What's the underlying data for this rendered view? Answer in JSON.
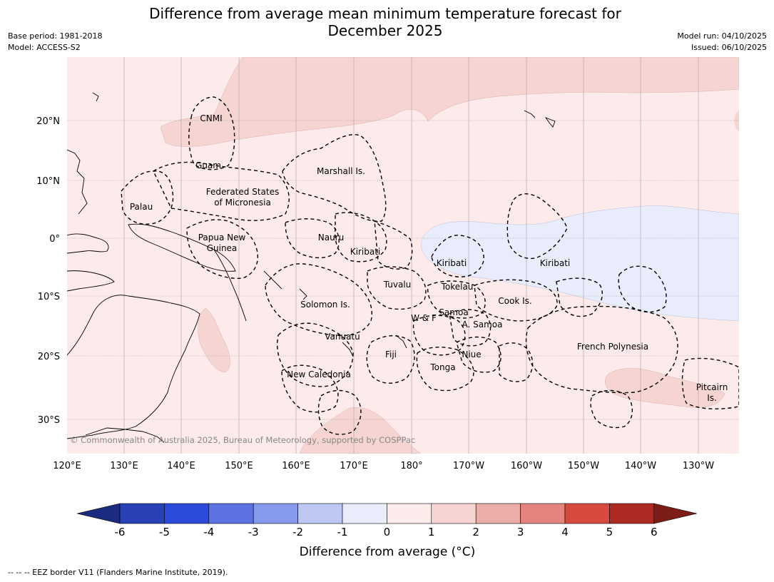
{
  "title_line1": "Difference from average mean minimum temperature forecast for",
  "title_line2": "December 2025",
  "meta_left": {
    "base_period": "Base period: 1981-2018",
    "model": "Model: ACCESS-S2"
  },
  "meta_right": {
    "model_run": "Model run: 04/10/2025",
    "issued": "Issued: 06/10/2025"
  },
  "lon_ticks": [
    "120°E",
    "130°E",
    "140°E",
    "150°E",
    "160°E",
    "170°E",
    "180°",
    "170°W",
    "160°W",
    "150°W",
    "140°W",
    "130°W"
  ],
  "lat_ticks": [
    "20°N",
    "10°N",
    "0°",
    "10°S",
    "20°S",
    "30°S"
  ],
  "region_labels": {
    "cnmi": "CNMI",
    "guam": "Guam",
    "marshall": "Marshall Is.",
    "fsm_1": "Federated States",
    "fsm_2": "of Micronesia",
    "palau": "Palau",
    "png_1": "Papua New",
    "png_2": "Guinea",
    "nauru": "Nauru",
    "kiribati_w": "Kiribati",
    "kiribati_c": "Kiribati",
    "kiribati_e": "Kiribati",
    "tuvalu": "Tuvalu",
    "tokelau": "Tokelau",
    "cook": "Cook Is.",
    "solomon": "Solomon Is.",
    "wf": "W & F",
    "samoa": "Samoa",
    "asamoa": "A. Samoa",
    "vanuatu": "Vanuatu",
    "fiji": "Fiji",
    "niue": "Niue",
    "tonga": "Tonga",
    "newcal": "New Caledonia",
    "frpoly": "French Polynesia",
    "pitcairn_1": "Pitcairn",
    "pitcairn_2": "Is."
  },
  "copyright": "© Commonwealth of Australia 2025, Bureau of Meteorology, supported by COSPPac",
  "colorbar": {
    "ticks": [
      "-6",
      "-5",
      "-4",
      "-3",
      "-2",
      "-1",
      "0",
      "1",
      "2",
      "3",
      "4",
      "5",
      "6"
    ],
    "colors": [
      "#2841b5",
      "#2d4bdb",
      "#5b72e0",
      "#8699ea",
      "#bfc8f3",
      "#e9ecfb",
      "#fcebea",
      "#f5d4d1",
      "#ecaea9",
      "#e5837e",
      "#d84a40",
      "#ac2a22"
    ],
    "under_color": "#1c2a80",
    "over_color": "#7b1e18",
    "label": "Difference from average (°C)"
  },
  "legend_note": "-- -- -- EEZ border V11 (Flanders Marine Institute, 2019).",
  "fill_colors": {
    "base": "#fcebea",
    "warm": "#f5d4d1",
    "cool": "#e9ecfb"
  }
}
